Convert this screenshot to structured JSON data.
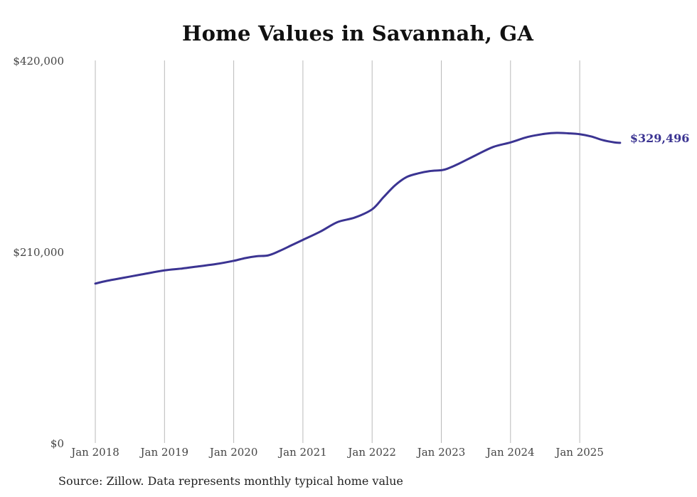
{
  "chart_data": {
    "type": "line",
    "title": "Home Values in Savannah, GA",
    "source": "Source: Zillow. Data represents monthly typical home value",
    "xlabel": "",
    "ylabel": "",
    "ylim": [
      0,
      420000
    ],
    "xlim": [
      "2018-01",
      "2025-08"
    ],
    "y_ticks": [
      {
        "value": 0,
        "label": "$0"
      },
      {
        "value": 210000,
        "label": "$210,000"
      },
      {
        "value": 420000,
        "label": "$420,000"
      }
    ],
    "x_ticks": [
      {
        "value": "2018-01",
        "label": "Jan 2018"
      },
      {
        "value": "2019-01",
        "label": "Jan 2019"
      },
      {
        "value": "2020-01",
        "label": "Jan 2020"
      },
      {
        "value": "2021-01",
        "label": "Jan 2021"
      },
      {
        "value": "2022-01",
        "label": "Jan 2022"
      },
      {
        "value": "2023-01",
        "label": "Jan 2023"
      },
      {
        "value": "2024-01",
        "label": "Jan 2024"
      },
      {
        "value": "2025-01",
        "label": "Jan 2025"
      }
    ],
    "grid": {
      "vertical": true,
      "horizontal": false
    },
    "line_color": "#3b3492",
    "end_label": "$329,496",
    "series": [
      {
        "x": [
          "2018-01",
          "2018-03",
          "2018-06",
          "2018-09",
          "2019-01",
          "2019-04",
          "2019-07",
          "2019-10",
          "2020-01",
          "2020-03",
          "2020-05",
          "2020-07",
          "2020-09",
          "2020-11",
          "2021-01",
          "2021-04",
          "2021-07",
          "2021-10",
          "2022-01",
          "2022-03",
          "2022-05",
          "2022-07",
          "2022-09",
          "2022-11",
          "2023-01",
          "2023-02",
          "2023-04",
          "2023-07",
          "2023-10",
          "2024-01",
          "2024-04",
          "2024-07",
          "2024-09",
          "2024-11",
          "2025-01",
          "2025-03",
          "2025-05",
          "2025-07",
          "2025-08"
        ],
        "y": [
          175000,
          178000,
          181500,
          185000,
          189500,
          191500,
          194000,
          196500,
          200000,
          203000,
          205000,
          206000,
          211000,
          217000,
          223000,
          232000,
          242500,
          247500,
          256500,
          270000,
          283000,
          292000,
          296000,
          298500,
          299500,
          301000,
          306500,
          316000,
          325000,
          330000,
          336000,
          339500,
          340500,
          340000,
          339000,
          336500,
          332500,
          330000,
          329496
        ]
      }
    ]
  }
}
